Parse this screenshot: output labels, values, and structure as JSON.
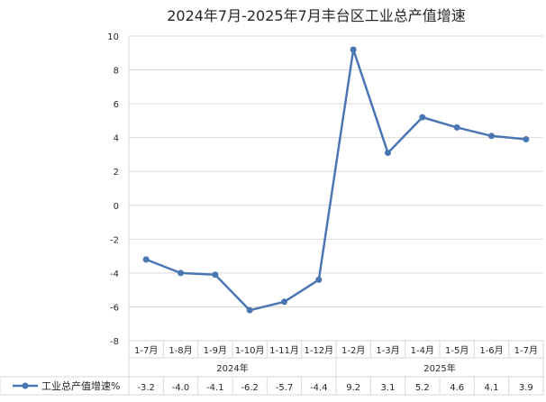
{
  "chart_data": {
    "type": "line",
    "title": "2024年7月-2025年7月丰台区工业总产值增速",
    "categories": [
      "1-7月",
      "1-8月",
      "1-9月",
      "1-10月",
      "1-11月",
      "1-12月",
      "1-2月",
      "1-3月",
      "1-4月",
      "1-5月",
      "1-6月",
      "1-7月"
    ],
    "groups": [
      {
        "label": "2024年",
        "count": 6
      },
      {
        "label": "2025年",
        "count": 6
      }
    ],
    "series": [
      {
        "name": "工业总产值增速%",
        "values": [
          -3.2,
          -4.0,
          -4.1,
          -6.2,
          -5.7,
          -4.4,
          9.2,
          3.1,
          5.2,
          4.6,
          4.1,
          3.9
        ]
      }
    ],
    "value_labels": [
      "-3.2",
      "-4.0",
      "-4.1",
      "-6.2",
      "-5.7",
      "-4.4",
      "9.2",
      "3.1",
      "5.2",
      "4.6",
      "4.1",
      "3.9"
    ],
    "yticks": [
      "10",
      "8",
      "6",
      "4",
      "2",
      "0",
      "-2",
      "-4",
      "-6",
      "-8"
    ],
    "ylim": [
      -8,
      10
    ],
    "grid": true,
    "legend": "data-table",
    "colors": {
      "series": "#4a77b4",
      "grid": "#d9d9d9",
      "text": "#262626"
    }
  }
}
